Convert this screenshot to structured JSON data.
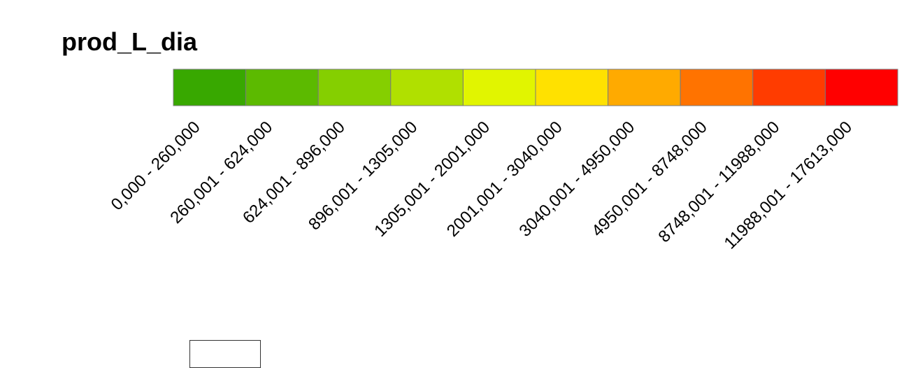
{
  "chart_data": {
    "type": "legend",
    "title": "prod_L_dia",
    "classes": [
      {
        "label": "0,000 - 260,000",
        "min": 0,
        "max": 260,
        "color": "#38a800"
      },
      {
        "label": "260,001 - 624,000",
        "min": 260.001,
        "max": 624,
        "color": "#5cba00"
      },
      {
        "label": "624,001 - 896,000",
        "min": 624.001,
        "max": 896,
        "color": "#85cf00"
      },
      {
        "label": "896,001 - 1305,000",
        "min": 896.001,
        "max": 1305,
        "color": "#b0e000"
      },
      {
        "label": "1305,001 - 2001,000",
        "min": 1305.001,
        "max": 2001,
        "color": "#e1f500"
      },
      {
        "label": "2001,001 - 3040,000",
        "min": 2001.001,
        "max": 3040,
        "color": "#ffe100"
      },
      {
        "label": "3040,001 - 4950,000",
        "min": 3040.001,
        "max": 4950,
        "color": "#ffaa00"
      },
      {
        "label": "4950,001 - 8748,000",
        "min": 4950.001,
        "max": 8748,
        "color": "#ff7300"
      },
      {
        "label": "8748,001 - 11988,000",
        "min": 8748.001,
        "max": 11988,
        "color": "#ff3c00"
      },
      {
        "label": "11988,001 - 17613,000",
        "min": 11988.001,
        "max": 17613,
        "color": "#ff0000"
      }
    ],
    "extra_swatch": {
      "color": "#ffffff"
    }
  }
}
